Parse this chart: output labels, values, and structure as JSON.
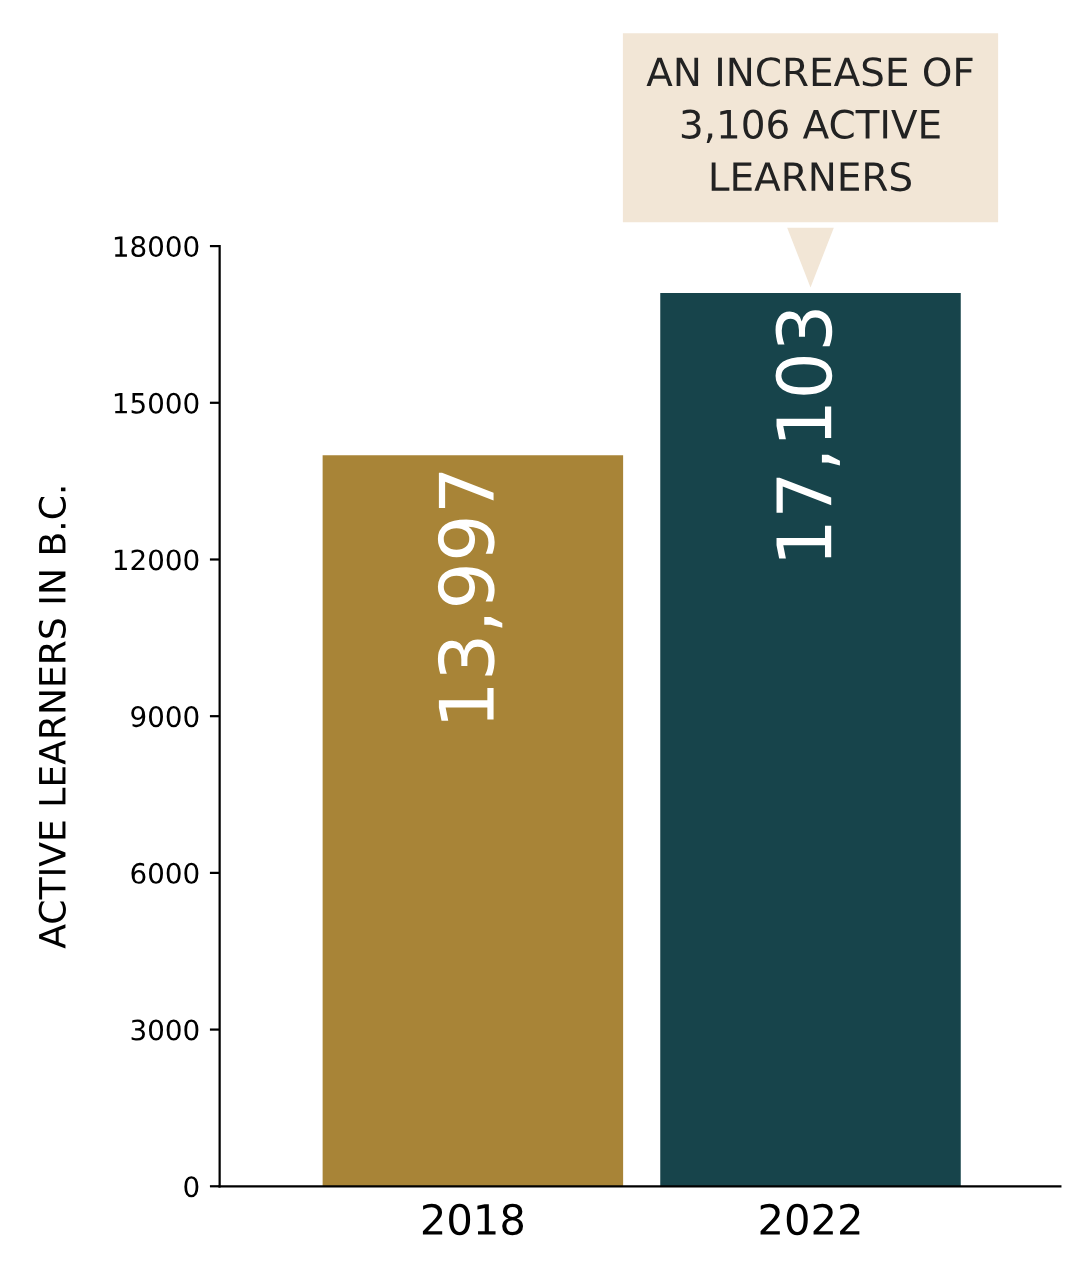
{
  "chart_data": {
    "type": "bar",
    "ylabel": "ACTIVE LEARNERS IN B.C.",
    "categories": [
      "2018",
      "2022"
    ],
    "values": [
      13997,
      17103
    ],
    "colors": [
      "#a88437",
      "#17444b"
    ],
    "value_labels": [
      "13,997",
      "17,103"
    ],
    "ylim": [
      0,
      18000
    ],
    "yticks": [
      0,
      3000,
      6000,
      9000,
      12000,
      15000,
      18000
    ],
    "grid": false,
    "legend": false,
    "annotations": [
      {
        "text": "AN INCREASE OF\n3,106 ACTIVE\nLEARNERS",
        "x": "2022",
        "y": 17103
      }
    ]
  }
}
